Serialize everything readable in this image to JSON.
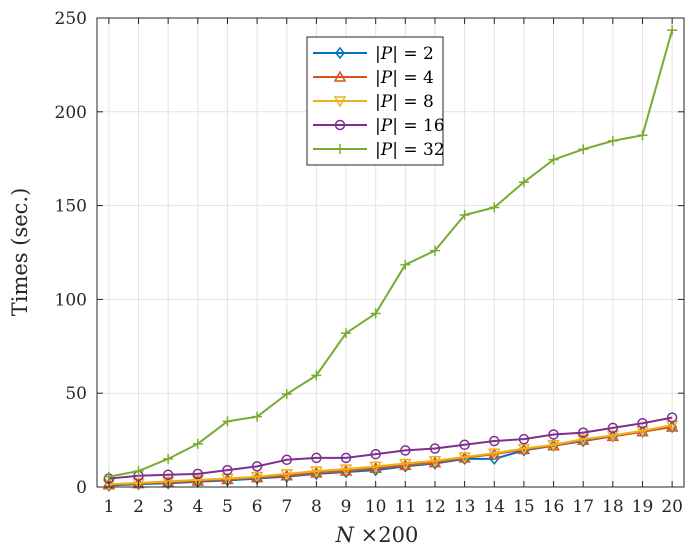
{
  "chart_data": {
    "type": "line",
    "xlabel_var": "N",
    "xlabel_rest": " ×200",
    "ylabel": "Times (sec.)",
    "x": [
      1,
      2,
      3,
      4,
      5,
      6,
      7,
      8,
      9,
      10,
      11,
      12,
      13,
      14,
      15,
      16,
      17,
      18,
      19,
      20
    ],
    "x_ticks": [
      "1",
      "2",
      "3",
      "4",
      "5",
      "6",
      "7",
      "8",
      "9",
      "10",
      "11",
      "12",
      "13",
      "14",
      "15",
      "16",
      "17",
      "18",
      "19",
      "20"
    ],
    "ylim": [
      0,
      250
    ],
    "y_ticks": [
      "0",
      "50",
      "100",
      "150",
      "200",
      "250"
    ],
    "grid": true,
    "legend_position": "top-center",
    "series": [
      {
        "name": "|P| = 2",
        "var": "P",
        "rhs": "2",
        "color": "#0072BD",
        "marker": "diamond",
        "values": [
          0.8,
          1.5,
          2,
          2.8,
          3.5,
          4.5,
          5.5,
          7,
          8,
          9,
          11,
          12.5,
          15,
          15,
          19.5,
          22,
          24.5,
          27,
          29.5,
          32
        ]
      },
      {
        "name": "|P| = 4",
        "var": "P",
        "rhs": "4",
        "color": "#D95319",
        "marker": "triangle-up",
        "values": [
          1.2,
          1.8,
          2.5,
          3.2,
          4,
          5,
          6,
          7.5,
          8.5,
          10,
          11.5,
          13,
          15.5,
          17.5,
          20,
          22,
          25,
          27,
          29.5,
          32
        ]
      },
      {
        "name": "|P| = 8",
        "var": "P",
        "rhs": "8",
        "color": "#EDB120",
        "marker": "triangle-down",
        "values": [
          1.5,
          2.2,
          3,
          3.8,
          4.5,
          5.5,
          7,
          8.5,
          9.5,
          11,
          12.5,
          14,
          16,
          18,
          20.5,
          22.5,
          25.5,
          27.5,
          30,
          33
        ]
      },
      {
        "name": "|P| = 16",
        "var": "P",
        "rhs": "16",
        "color": "#7E2F8E",
        "marker": "circle",
        "values": [
          4.5,
          6,
          6.5,
          7,
          9,
          11,
          14.5,
          15.5,
          15.5,
          17.5,
          19.5,
          20.5,
          22.5,
          24.5,
          25.5,
          28,
          29,
          31.5,
          34,
          37
        ]
      },
      {
        "name": "|P| = 32",
        "var": "P",
        "rhs": "32",
        "color": "#77AC30",
        "marker": "plus",
        "values": [
          5.5,
          8.5,
          15,
          23,
          35,
          37.5,
          49.5,
          59.5,
          82,
          92.5,
          118.5,
          126,
          145,
          149,
          162.5,
          174.5,
          180,
          184.5,
          187.5,
          243.5
        ]
      }
    ]
  }
}
